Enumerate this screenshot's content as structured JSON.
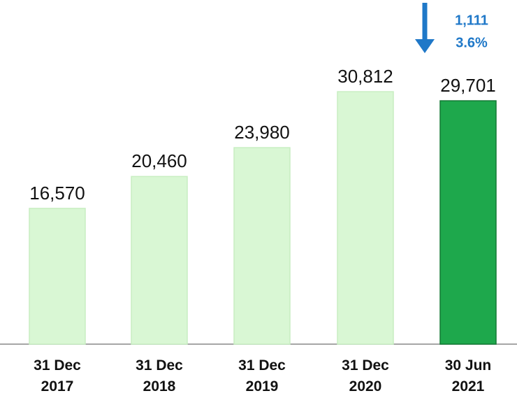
{
  "chart_data": {
    "type": "bar",
    "categories": [
      "31 Dec\n2017",
      "31 Dec\n2018",
      "31 Dec\n2019",
      "31 Dec\n2020",
      "30 Jun\n2021"
    ],
    "values": [
      16570,
      20460,
      23980,
      30812,
      29701
    ],
    "value_labels": [
      "16,570",
      "20,460",
      "23,980",
      "30,812",
      "29,701"
    ],
    "colors": [
      "#d9f7d4",
      "#d9f7d4",
      "#d9f7d4",
      "#d9f7d4",
      "#1ea84c"
    ],
    "ylim": [
      0,
      42000
    ],
    "annotations": [
      "1,111",
      "3.6%"
    ],
    "annotation_color": "#1f78c8"
  }
}
